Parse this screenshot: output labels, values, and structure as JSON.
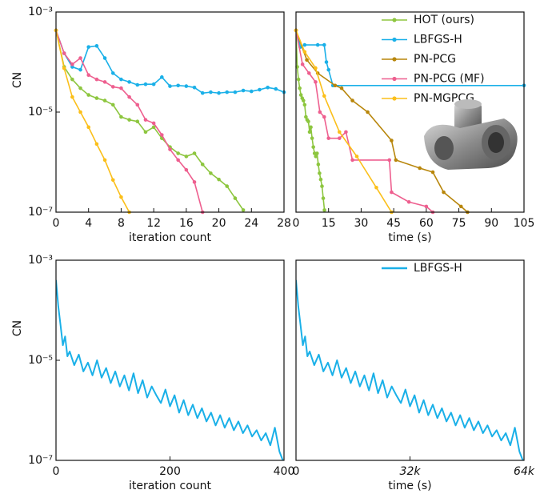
{
  "chart_data": [
    {
      "type": "line",
      "ylabel": "CN",
      "xlabel": "iteration count",
      "log_y": true,
      "markers": true,
      "xlim": [
        0,
        28
      ],
      "xticks": [
        0,
        4,
        8,
        12,
        16,
        20,
        24,
        28
      ],
      "ylim": [
        1e-07,
        0.001
      ],
      "yticks": [
        {
          "value": 0.001,
          "label": "10⁻³"
        },
        {
          "value": 1e-05,
          "label": "10⁻⁵"
        },
        {
          "value": 1e-07,
          "label": "10⁻⁷"
        }
      ],
      "series": [
        {
          "color": "#1ab0e8",
          "x": [
            0,
            1,
            2,
            3,
            4,
            5,
            6,
            7,
            8,
            9,
            10,
            11,
            12,
            13,
            14,
            15,
            16,
            17,
            18,
            19,
            20,
            21,
            22,
            23,
            24,
            25,
            26,
            27,
            28
          ],
          "values": [
            0.00043,
            0.00015,
            8e-05,
            7e-05,
            0.0002,
            0.00021,
            0.00012,
            6e-05,
            4.5e-05,
            4e-05,
            3.5e-05,
            3.6e-05,
            3.6e-05,
            5e-05,
            3.3e-05,
            3.4e-05,
            3.3e-05,
            3.1e-05,
            2.4e-05,
            2.5e-05,
            2.4e-05,
            2.5e-05,
            2.5e-05,
            2.7e-05,
            2.6e-05,
            2.8e-05,
            3.1e-05,
            2.9e-05,
            2.5e-05
          ]
        },
        {
          "color": "#8dc63f",
          "x": [
            0,
            1,
            2,
            3,
            4,
            5,
            6,
            7,
            8,
            9,
            10,
            11,
            12,
            13,
            14,
            15,
            16,
            17,
            18,
            19,
            20,
            21,
            22,
            23
          ],
          "values": [
            0.00043,
            8e-05,
            4.5e-05,
            3e-05,
            2.2e-05,
            1.9e-05,
            1.7e-05,
            1.4e-05,
            8e-06,
            7e-06,
            6.5e-06,
            4e-06,
            5e-06,
            3e-06,
            2e-06,
            1.5e-06,
            1.3e-06,
            1.5e-06,
            9e-07,
            6e-07,
            4.5e-07,
            3.3e-07,
            1.9e-07,
            1.1e-07
          ]
        },
        {
          "color": "#ee5f8f",
          "x": [
            0,
            1,
            2,
            3,
            4,
            5,
            6,
            7,
            8,
            9,
            10,
            11,
            12,
            13,
            14,
            15,
            16,
            17,
            18
          ],
          "values": [
            0.00043,
            0.00015,
            9e-05,
            0.00012,
            5.5e-05,
            4.5e-05,
            4e-05,
            3.2e-05,
            3e-05,
            2e-05,
            1.4e-05,
            7e-06,
            6e-06,
            3.5e-06,
            1.8e-06,
            1.1e-06,
            7e-07,
            4e-07,
            1e-07
          ]
        },
        {
          "color": "#fbbf1a",
          "x": [
            0,
            1,
            2,
            3,
            4,
            5,
            6,
            7,
            8,
            9
          ],
          "values": [
            0.00043,
            7.5e-05,
            2e-05,
            1e-05,
            5e-06,
            2.3e-06,
            1.1e-06,
            4.4e-07,
            2e-07,
            1e-07
          ]
        }
      ]
    },
    {
      "type": "line",
      "xlabel": "time (s)",
      "log_y": true,
      "markers": true,
      "legend": "upper right",
      "xlim": [
        0,
        105
      ],
      "xticks": [
        0,
        15,
        30,
        45,
        60,
        75,
        90,
        105
      ],
      "ylim": [
        1e-07,
        0.001
      ],
      "series": [
        {
          "name": "HOT (ours)",
          "color": "#8dc63f",
          "x": [
            0,
            0.57,
            1.14,
            1.71,
            2.28,
            2.85,
            3.42,
            3.99,
            4.56,
            5.13,
            5.7,
            6.27,
            6.84,
            7.41,
            7.98,
            8.55,
            9.12,
            9.69,
            10.26,
            10.83,
            11.4,
            11.97,
            12.54,
            13.11
          ],
          "values": [
            0.00043,
            8e-05,
            4.5e-05,
            3e-05,
            2.2e-05,
            1.9e-05,
            1.7e-05,
            1.4e-05,
            8e-06,
            7e-06,
            6.5e-06,
            4e-06,
            5e-06,
            3e-06,
            2e-06,
            1.5e-06,
            1.3e-06,
            1.5e-06,
            9e-07,
            6e-07,
            4.5e-07,
            3.3e-07,
            1.9e-07,
            1.1e-07
          ]
        },
        {
          "name": "LBFGS-H",
          "color": "#1ab0e8",
          "x": [
            0,
            2,
            4,
            10,
            13,
            14,
            15,
            17,
            105
          ],
          "values": [
            0.00043,
            0.0002,
            0.00022,
            0.00022,
            0.00022,
            0.0001,
            7e-05,
            3.4e-05,
            3.4e-05
          ]
        },
        {
          "name": "PN-PCG",
          "color": "#b8860b",
          "x": [
            0,
            5,
            10,
            18,
            21,
            26,
            33,
            44,
            46,
            57,
            63,
            68,
            76,
            79
          ],
          "values": [
            0.00043,
            0.00011,
            6e-05,
            3.4e-05,
            3e-05,
            1.7e-05,
            1e-05,
            2.7e-06,
            1.1e-06,
            7.6e-07,
            6.3e-07,
            2.5e-07,
            1.3e-07,
            1e-07
          ]
        },
        {
          "name": "PN-PCG (MF)",
          "color": "#ee5f8f",
          "x": [
            0,
            3,
            6,
            9,
            11,
            13,
            15,
            20,
            23,
            26,
            43,
            44,
            52,
            60,
            63
          ],
          "values": [
            0.00043,
            9e-05,
            6e-05,
            4e-05,
            1e-05,
            8e-06,
            3e-06,
            3e-06,
            4e-06,
            1.1e-06,
            1.1e-06,
            2.5e-07,
            1.6e-07,
            1.3e-07,
            1e-07
          ]
        },
        {
          "name": "PN-MGPCG",
          "color": "#fbbf1a",
          "x": [
            0,
            4,
            9,
            13,
            20,
            28,
            37,
            44
          ],
          "values": [
            0.00043,
            0.00016,
            7.6e-05,
            2.1e-05,
            4e-06,
            1.3e-06,
            3.1e-07,
            1e-07
          ]
        }
      ]
    },
    {
      "type": "line",
      "ylabel": "CN",
      "xlabel": "iteration count",
      "log_y": true,
      "markers": false,
      "xlim": [
        0,
        400
      ],
      "xticks": [
        0,
        200,
        400
      ],
      "ylim": [
        1e-07,
        0.001
      ],
      "yticks": [
        {
          "value": 0.001,
          "label": "10⁻³"
        },
        {
          "value": 1e-05,
          "label": "10⁻⁵"
        },
        {
          "value": 1e-07,
          "label": "10⁻⁷"
        }
      ],
      "series": [
        {
          "color": "#1ab0e8",
          "x": [
            0,
            4,
            8,
            12,
            16,
            20,
            24,
            32,
            40,
            48,
            56,
            64,
            72,
            80,
            88,
            96,
            104,
            112,
            120,
            128,
            136,
            144,
            152,
            160,
            168,
            176,
            184,
            192,
            200,
            208,
            216,
            224,
            232,
            240,
            248,
            256,
            264,
            272,
            280,
            288,
            296,
            304,
            312,
            320,
            328,
            336,
            344,
            352,
            360,
            368,
            376,
            384,
            392,
            398
          ],
          "values": [
            0.0004,
            0.00012,
            5e-05,
            2e-05,
            3e-05,
            1.2e-05,
            1.5e-05,
            8e-06,
            1.3e-05,
            6e-06,
            9e-06,
            5e-06,
            1e-05,
            4.5e-06,
            7e-06,
            3.5e-06,
            6e-06,
            3e-06,
            5e-06,
            2.5e-06,
            5.5e-06,
            2.2e-06,
            4e-06,
            1.8e-06,
            3e-06,
            2e-06,
            1.4e-06,
            2.6e-06,
            1.2e-06,
            2e-06,
            9e-07,
            1.6e-06,
            8e-07,
            1.3e-06,
            7e-07,
            1.1e-06,
            6e-07,
            9e-07,
            5e-07,
            8e-07,
            4.5e-07,
            7e-07,
            4e-07,
            6e-07,
            3.5e-07,
            5e-07,
            3e-07,
            4e-07,
            2.5e-07,
            3.5e-07,
            2e-07,
            4.5e-07,
            1.5e-07,
            1e-07
          ]
        }
      ]
    },
    {
      "type": "line",
      "xlabel": "time (s)",
      "log_y": true,
      "markers": false,
      "legend": "upper right",
      "xlim": [
        0,
        64000
      ],
      "xticks": [
        0,
        {
          "value": 32000,
          "label": "32k"
        },
        {
          "value": 64000,
          "label": "64k"
        }
      ],
      "ylim": [
        1e-07,
        0.001
      ],
      "series": [
        {
          "name": "LBFGS-H",
          "color": "#1ab0e8",
          "x": [
            0,
            640,
            1280,
            1920,
            2560,
            3200,
            3840,
            5120,
            6400,
            7680,
            8960,
            10240,
            11520,
            12800,
            14080,
            15360,
            16640,
            17920,
            19200,
            20480,
            21760,
            23040,
            24320,
            25600,
            26880,
            28160,
            29440,
            30720,
            32000,
            33280,
            34560,
            35840,
            37120,
            38400,
            39680,
            40960,
            42240,
            43520,
            44800,
            46080,
            47360,
            48640,
            49920,
            51200,
            52480,
            53760,
            55040,
            56320,
            57600,
            58880,
            60160,
            61440,
            62720,
            63680
          ],
          "values": [
            0.0004,
            0.00012,
            5e-05,
            2e-05,
            3e-05,
            1.2e-05,
            1.5e-05,
            8e-06,
            1.3e-05,
            6e-06,
            9e-06,
            5e-06,
            1e-05,
            4.5e-06,
            7e-06,
            3.5e-06,
            6e-06,
            3e-06,
            5e-06,
            2.5e-06,
            5.5e-06,
            2.2e-06,
            4e-06,
            1.8e-06,
            3e-06,
            2e-06,
            1.4e-06,
            2.6e-06,
            1.2e-06,
            2e-06,
            9e-07,
            1.6e-06,
            8e-07,
            1.3e-06,
            7e-07,
            1.1e-06,
            6e-07,
            9e-07,
            5e-07,
            8e-07,
            4.5e-07,
            7e-07,
            4e-07,
            6e-07,
            3.5e-07,
            5e-07,
            3e-07,
            4e-07,
            2.5e-07,
            3.5e-07,
            2e-07,
            4.5e-07,
            1.5e-07,
            1e-07
          ]
        }
      ]
    }
  ]
}
